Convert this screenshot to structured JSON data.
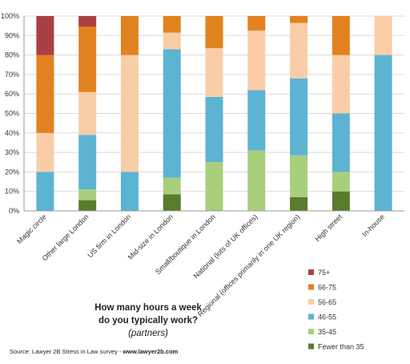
{
  "chart_data": {
    "type": "bar",
    "stacked": true,
    "title": "How many hours a week do you typically work?",
    "title_lines": [
      "How many hours a week",
      "do you typically work?"
    ],
    "subtitle": "(partners)",
    "source": "Source: Lawyer 2B Stress in Law survey - ",
    "source_url": "www.lawyer2b.com",
    "ylim": [
      0,
      100
    ],
    "y_ticks": [
      "0%",
      "10%",
      "20%",
      "30%",
      "40%",
      "50%",
      "60%",
      "70%",
      "80%",
      "90%",
      "100%"
    ],
    "grid": true,
    "legend_position": "right",
    "categories": [
      "Magic circle",
      "Other large London",
      "US firm in London",
      "Mid-size in London",
      "Small/boutique in London",
      "National (lots of UK offices)",
      "Regional (offices primarily in one UK region)",
      "High street",
      "In-house"
    ],
    "series": [
      {
        "name": "Fewer than 35",
        "color": "#5a7a2e",
        "values": [
          0,
          5.5,
          0,
          8.5,
          0,
          0,
          7,
          10,
          0
        ]
      },
      {
        "name": "35-45",
        "color": "#a9cf7c",
        "values": [
          0,
          5.5,
          0,
          8.5,
          25,
          31,
          21.5,
          10,
          0
        ]
      },
      {
        "name": "46-55",
        "color": "#5cb3d2",
        "values": [
          20,
          28,
          20,
          66,
          33.5,
          31,
          39.5,
          30,
          80
        ]
      },
      {
        "name": "56-65",
        "color": "#f9cda8",
        "values": [
          20,
          22,
          60,
          8.5,
          25,
          30.5,
          28.5,
          30,
          20
        ]
      },
      {
        "name": "66-75",
        "color": "#e2821f",
        "values": [
          40,
          33.5,
          20,
          8.5,
          16.5,
          7.5,
          3.5,
          20,
          0
        ]
      },
      {
        "name": "75+",
        "color": "#a84042",
        "values": [
          20,
          5.5,
          0,
          0,
          0,
          0,
          0,
          0,
          0
        ]
      }
    ]
  }
}
